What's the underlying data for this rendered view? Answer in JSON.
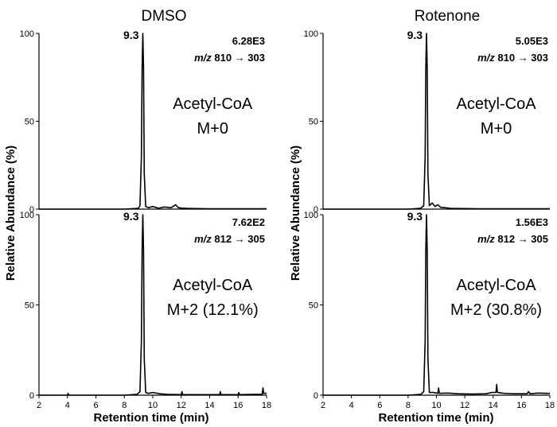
{
  "chart_data": [
    {
      "type": "line",
      "column_title": "DMSO",
      "compound": "Acetyl-CoA",
      "isotopologue": "M+0",
      "nl": "6.28E3",
      "mz_prefix": "m/z",
      "mz_transition": "810 → 303",
      "peak_label": "9.3",
      "ylabel": "Relative Abundance (%)",
      "xlabel": "",
      "yticks": [
        "100",
        "50",
        "0"
      ],
      "xlim": [
        2,
        18
      ],
      "ylim": [
        0,
        100
      ],
      "series": [
        {
          "x": [
            2,
            4,
            6,
            8,
            8.7,
            9.0,
            9.1,
            9.2,
            9.25,
            9.3,
            9.35,
            9.4,
            9.5,
            9.7,
            10.0,
            10.4,
            10.8,
            11.3,
            11.6,
            11.8,
            12.0,
            12.4,
            13,
            14,
            15,
            16,
            17,
            18
          ],
          "y": [
            0,
            0,
            0,
            0,
            0.3,
            0.5,
            2,
            30,
            80,
            100,
            80,
            20,
            1.5,
            0.8,
            1.5,
            0.5,
            1.2,
            0.8,
            2.5,
            0.8,
            0.6,
            0.4,
            0.3,
            0.2,
            0.2,
            0.2,
            0.2,
            0.2
          ]
        }
      ]
    },
    {
      "type": "line",
      "column_title": "",
      "compound": "Acetyl-CoA",
      "isotopologue": "M+2 (12.1%)",
      "nl": "7.62E2",
      "mz_prefix": "m/z",
      "mz_transition": "812 → 305",
      "peak_label": "9.3",
      "ylabel": "Relative Abundance (%)",
      "xlabel": "Retention time (min)",
      "yticks": [
        "100",
        "50",
        "0"
      ],
      "xticks": [
        "2",
        "4",
        "6",
        "8",
        "10",
        "12",
        "14",
        "16",
        "18"
      ],
      "xlim": [
        2,
        18
      ],
      "ylim": [
        0,
        100
      ],
      "series": [
        {
          "x": [
            2,
            4,
            4.05,
            4.1,
            6,
            8,
            8.9,
            9.1,
            9.2,
            9.25,
            9.3,
            9.35,
            9.4,
            9.5,
            9.7,
            10.0,
            10.5,
            11,
            12.0,
            12.05,
            12.1,
            13.0,
            14.7,
            14.75,
            14.8,
            16.0,
            16.05,
            16.1,
            17.2,
            17.7,
            17.75,
            17.8,
            18
          ],
          "y": [
            0,
            0,
            1,
            0,
            0,
            0,
            0.5,
            2,
            30,
            80,
            100,
            80,
            20,
            1.5,
            1,
            1.5,
            0.8,
            0.5,
            0.3,
            2,
            0.3,
            0.3,
            0.3,
            2,
            0.3,
            0.3,
            1.5,
            0.3,
            0.5,
            0.5,
            4,
            1,
            1
          ]
        }
      ]
    },
    {
      "type": "line",
      "column_title": "Rotenone",
      "compound": "Acetyl-CoA",
      "isotopologue": "M+0",
      "nl": "5.05E3",
      "mz_prefix": "m/z",
      "mz_transition": "810 → 303",
      "peak_label": "9.3",
      "ylabel": "Relative Abundance (%)",
      "xlabel": "",
      "yticks": [
        "100",
        "50",
        "0"
      ],
      "xlim": [
        2,
        18
      ],
      "ylim": [
        0,
        100
      ],
      "series": [
        {
          "x": [
            2,
            4,
            6,
            8,
            8.9,
            9.1,
            9.2,
            9.25,
            9.3,
            9.35,
            9.4,
            9.5,
            9.7,
            9.9,
            10.1,
            10.3,
            10.6,
            11.0,
            12.0,
            13,
            14,
            15,
            16,
            17,
            18
          ],
          "y": [
            0,
            0,
            0,
            0,
            0.5,
            2,
            30,
            80,
            100,
            80,
            20,
            2,
            3.5,
            1.5,
            2.5,
            1,
            0.8,
            0.4,
            0.3,
            0.2,
            0.2,
            0.2,
            0.2,
            0.2,
            0.2
          ]
        }
      ]
    },
    {
      "type": "line",
      "column_title": "",
      "compound": "Acetyl-CoA",
      "isotopologue": "M+2 (30.8%)",
      "nl": "1.56E3",
      "mz_prefix": "m/z",
      "mz_transition": "812 → 305",
      "peak_label": "9.3",
      "ylabel": "Relative Abundance (%)",
      "xlabel": "Retention time (min)",
      "yticks": [
        "100",
        "50",
        "0"
      ],
      "xticks": [
        "2",
        "4",
        "6",
        "8",
        "10",
        "12",
        "14",
        "16",
        "18"
      ],
      "xlim": [
        2,
        18
      ],
      "ylim": [
        0,
        100
      ],
      "series": [
        {
          "x": [
            2,
            4,
            6,
            8,
            8.9,
            9.1,
            9.2,
            9.25,
            9.3,
            9.35,
            9.4,
            9.5,
            9.8,
            10.1,
            10.15,
            10.2,
            10.8,
            11.5,
            12.5,
            13.5,
            13.9,
            14.2,
            14.25,
            14.3,
            14.8,
            15.5,
            16.4,
            16.5,
            16.6,
            17.2,
            17.8,
            18
          ],
          "y": [
            0,
            0,
            0,
            0,
            0.5,
            2,
            30,
            80,
            100,
            80,
            20,
            1.5,
            1.5,
            1,
            4,
            1,
            1.2,
            0.8,
            0.6,
            0.8,
            1.5,
            1.5,
            6,
            1.5,
            1,
            0.8,
            0.8,
            2,
            0.8,
            1.2,
            1,
            1
          ]
        }
      ]
    }
  ]
}
